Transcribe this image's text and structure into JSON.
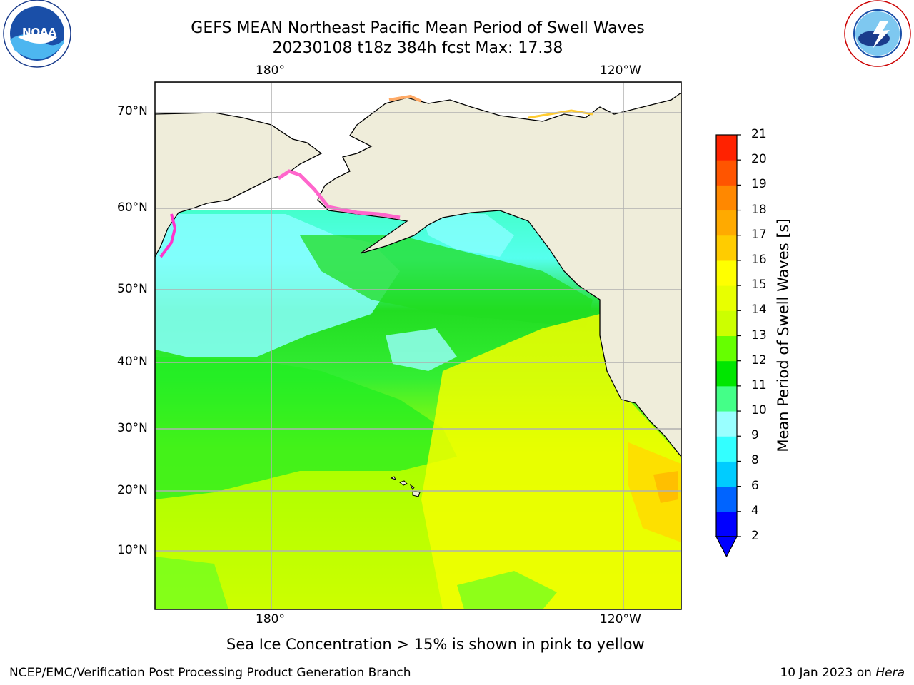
{
  "header": {
    "title_line1": "GEFS MEAN Northeast Pacific Mean Period of Swell Waves",
    "title_line2": "20230108 t18z 384h fcst   Max: 17.38"
  },
  "logos": {
    "noaa_text": "NOAA",
    "noaa_ring_text": "NATIONAL OCEANIC AND ATMOSPHERIC ADMINISTRATION · U.S. DEPARTMENT OF COMMERCE",
    "nws_ring_text": "NATIONAL WEATHER SERVICE"
  },
  "map": {
    "lon_labels": [
      "180°",
      "120°W"
    ],
    "lat_labels": [
      "70°N",
      "60°N",
      "50°N",
      "40°N",
      "30°N",
      "20°N",
      "10°N"
    ],
    "gridlines": true,
    "field": "Mean Period of Swell Waves",
    "max_value": 17.38
  },
  "colorbar": {
    "label": "Mean Period of Swell Waves [s]",
    "ticks": [
      "2",
      "4",
      "6",
      "8",
      "9",
      "10",
      "11",
      "12",
      "13",
      "14",
      "15",
      "16",
      "17",
      "18",
      "19",
      "20",
      "21"
    ],
    "colors": [
      "#0000ff",
      "#0064ff",
      "#00ccff",
      "#33ffff",
      "#99ffff",
      "#44ff88",
      "#00e600",
      "#66ff00",
      "#ccff00",
      "#e8ff00",
      "#ffff00",
      "#ffcc00",
      "#ffaa00",
      "#ff8800",
      "#ff5500",
      "#ff2200"
    ],
    "extend": "min"
  },
  "caption": "Sea Ice Concentration > 15% is shown in pink to yellow",
  "footer": {
    "left": "NCEP/EMC/Verification Post Processing Product Generation Branch",
    "right_prefix": "10 Jan 2023 on ",
    "right_italic": "Hera"
  }
}
